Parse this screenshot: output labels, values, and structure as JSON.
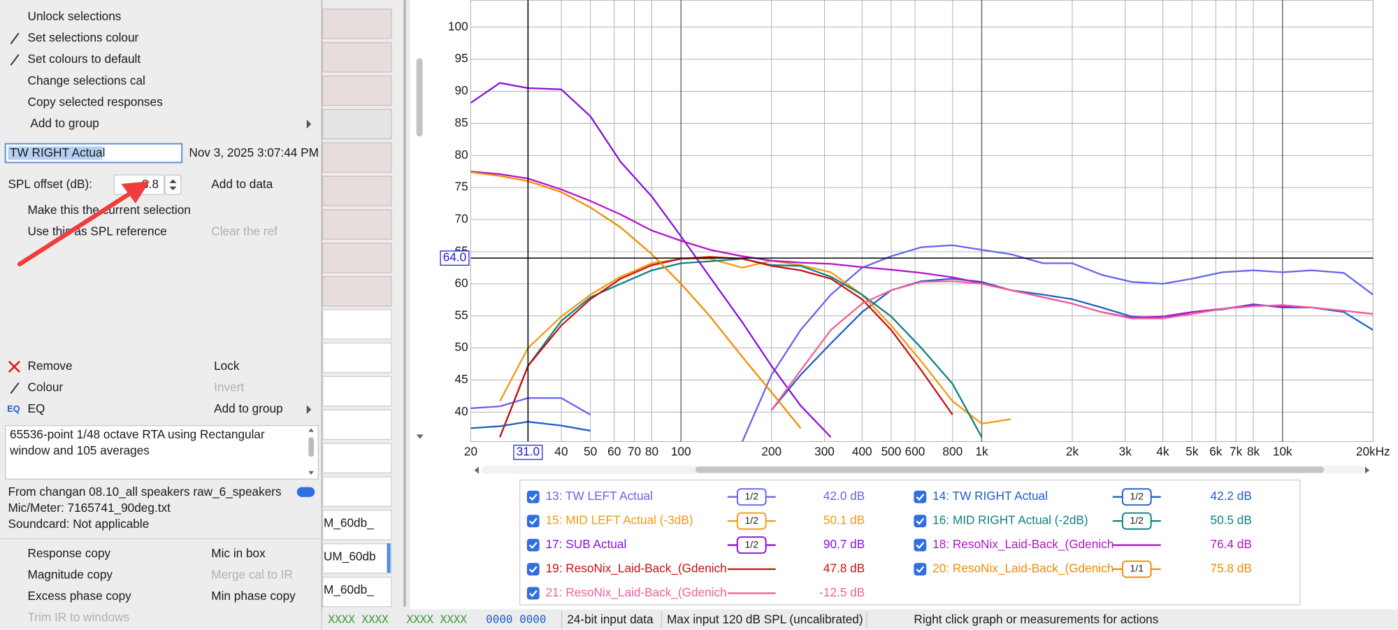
{
  "menu_top": [
    "Unlock selections",
    "Set selections colour",
    "Set colours to default",
    "Change selections cal",
    "Copy selected responses",
    "Add to group"
  ],
  "name_field": "TW RIGHT Actual",
  "timestamp": "Nov 3, 2025 3:07:44 PM",
  "spl_offset": {
    "label": "SPL offset (dB):",
    "value": -3.8,
    "button": "Add to data"
  },
  "actions": [
    "Make this the current selection",
    "Use this as SPL reference",
    "Clear the ref"
  ],
  "item_menu": [
    [
      "Remove",
      "Lock"
    ],
    [
      "Colour",
      "Invert"
    ],
    [
      "EQ",
      "Add to group"
    ]
  ],
  "notes": [
    "65536-point 1/48 octave RTA using Rectangular",
    "window and 105 averages"
  ],
  "info": [
    "From changan 08.10_all speakers raw_6_speakers",
    "Mic/Meter: 7165741_90deg.txt",
    "Soundcard: Not applicable"
  ],
  "bottom_menu": [
    [
      "Response copy",
      "Mic in box"
    ],
    [
      "Magnitude copy",
      "Merge cal to IR"
    ],
    [
      "Excess phase copy",
      "Min phase copy"
    ],
    [
      "Trim IR to windows"
    ]
  ],
  "list_fragments": [
    "M_60db_",
    "UM_60db",
    "M_60db_"
  ],
  "status": [
    "XXXX XXXX",
    "XXXX XXXX",
    "0000 0000",
    "24-bit input data",
    "Max input 120 dB SPL (uncalibrated)",
    "Right click graph or measurements for actions"
  ],
  "graph": {
    "type": "line",
    "log_x": true,
    "xlim": [
      20,
      20000
    ],
    "ylim": [
      35.4,
      104.2
    ],
    "yticks": [
      40,
      45,
      50,
      55,
      60,
      65,
      70,
      75,
      80,
      85,
      90,
      95,
      100
    ],
    "xticks": [
      20,
      40,
      50,
      60,
      70,
      80,
      100,
      200,
      300,
      400,
      500,
      600,
      800,
      {
        "value": 1000,
        "label": "1k"
      },
      {
        "value": 2000,
        "label": "2k"
      },
      {
        "value": 3000,
        "label": "3k"
      },
      {
        "value": 4000,
        "label": "4k"
      },
      {
        "value": 5000,
        "label": "5k"
      },
      {
        "value": 6000,
        "label": "6k"
      },
      {
        "value": 7000,
        "label": "7k"
      },
      {
        "value": 8000,
        "label": "8k"
      },
      {
        "value": 10000,
        "label": "10k"
      },
      {
        "value": 20000,
        "label": "20kHz"
      }
    ],
    "cursor": {
      "x": {
        "value": 31,
        "label": "31.0"
      },
      "y": {
        "value": 64,
        "label": "64.0"
      }
    },
    "x": [
      20,
      25,
      31,
      40,
      50,
      63,
      80,
      100,
      125,
      160,
      200,
      250,
      315,
      400,
      500,
      630,
      800,
      1000,
      1250,
      1600,
      2000,
      2500,
      3150,
      4000,
      5000,
      6300,
      8000,
      10000,
      12500,
      16000,
      20000
    ],
    "series": [
      {
        "name": "13: TW LEFT Actual",
        "color": "#6464f0",
        "smoothing": "1/2",
        "level": "42.0 dB",
        "values": [
          40.6,
          40.9,
          42.2,
          42.2,
          39.6,
          null,
          null,
          null,
          null,
          35.4,
          45.8,
          52.8,
          58.3,
          62.5,
          64.3,
          65.7,
          66,
          65.3,
          64.6,
          63.2,
          63.2,
          61.4,
          60.3,
          60,
          60.8,
          61.8,
          62.1,
          61.8,
          62.1,
          61.7,
          58.3
        ]
      },
      {
        "name": "14: TW RIGHT Actual",
        "color": "#1f5fc8",
        "smoothing": "1/2",
        "level": "42.2 dB",
        "values": [
          37.5,
          37.8,
          38.5,
          37.9,
          37.1,
          null,
          null,
          null,
          null,
          null,
          40.3,
          45.8,
          50.7,
          55.6,
          59,
          60.4,
          60.8,
          60.3,
          59,
          58.3,
          57.6,
          56.3,
          54.9,
          54.6,
          55.6,
          56,
          56.8,
          56.3,
          56.3,
          55.6,
          52.8
        ]
      },
      {
        "name": "15: MID LEFT Actual (-3dB)",
        "color": "#f59a0c",
        "smoothing": "1/2",
        "level": "50.1 dB",
        "values": [
          null,
          41.7,
          50,
          54.9,
          58.3,
          61.1,
          63.2,
          63.9,
          63.9,
          62.5,
          63.6,
          62.9,
          61.8,
          58.3,
          53.5,
          47.9,
          41.7,
          38.2,
          38.9,
          null,
          null,
          null,
          null,
          null,
          null,
          null,
          null,
          null,
          null,
          null,
          null
        ]
      },
      {
        "name": "16: MID RIGHT Actual (-2dB)",
        "color": "#0e8080",
        "smoothing": "1/2",
        "level": "50.5 dB",
        "values": [
          null,
          36.1,
          47.2,
          54.2,
          57.9,
          60,
          62.1,
          63.2,
          63.5,
          63.9,
          62.9,
          62.8,
          61.1,
          58.3,
          54.9,
          50,
          44.4,
          36.1,
          null,
          null,
          null,
          null,
          null,
          null,
          null,
          null,
          null,
          null,
          null,
          null,
          null
        ]
      },
      {
        "name": "17: SUB Actual",
        "color": "#8a10e0",
        "smoothing": "1/2",
        "level": "90.7 dB",
        "values": [
          88.2,
          91.3,
          90.5,
          90.3,
          86.1,
          79,
          73.6,
          67.4,
          61,
          54,
          47.2,
          41,
          36.1,
          null,
          null,
          null,
          null,
          null,
          null,
          null,
          null,
          null,
          null,
          null,
          null,
          null,
          null,
          null,
          null,
          null,
          null
        ]
      },
      {
        "name": "18: ResoNix_Laid-Back_(Gdenich",
        "color": "#b414c8",
        "smoothing": null,
        "level": "76.4 dB",
        "values": [
          77.5,
          77.1,
          76.4,
          74.7,
          72.9,
          70.8,
          68.3,
          66.7,
          65.3,
          64.3,
          63.6,
          63.3,
          63.1,
          62.6,
          62.2,
          61.7,
          61,
          60.1,
          59,
          57.9,
          56.9,
          55.6,
          54.7,
          54.9,
          55.6,
          56.1,
          56.7,
          56.5,
          56.3,
          55.8,
          55.3
        ]
      },
      {
        "name": "19: ResoNix_Laid-Back_(Gdenich",
        "color": "#c81010",
        "smoothing": null,
        "level": "47.8 dB",
        "values": [
          null,
          36.1,
          47.2,
          53.5,
          57.6,
          60.8,
          62.9,
          63.9,
          64.2,
          63.9,
          62.8,
          62.1,
          60.8,
          57.6,
          52.8,
          46.5,
          39.6,
          null,
          null,
          null,
          null,
          null,
          null,
          null,
          null,
          null,
          null,
          null,
          null,
          null,
          null
        ]
      },
      {
        "name": "20: ResoNix_Laid-Back_(Gdenich",
        "color": "#f08c00",
        "smoothing": "1/1",
        "level": "75.8 dB",
        "values": [
          77.4,
          76.8,
          76,
          74.3,
          71.9,
          68.8,
          64.6,
          60,
          54.9,
          48.6,
          43.1,
          37.5,
          null,
          null,
          null,
          null,
          null,
          null,
          null,
          null,
          null,
          null,
          null,
          null,
          null,
          null,
          null,
          null,
          null,
          null,
          null
        ]
      },
      {
        "name": "21: ResoNix_Laid-Back_(Gdenich",
        "color": "#f0609a",
        "smoothing": null,
        "level": "-12.5 dB",
        "values": [
          null,
          null,
          null,
          null,
          null,
          null,
          null,
          null,
          null,
          null,
          40.3,
          46.5,
          52.8,
          56.9,
          59,
          60.3,
          60.4,
          60,
          59,
          57.9,
          56.9,
          55.6,
          54.6,
          54.6,
          55.3,
          56.1,
          56.5,
          56.7,
          56.3,
          55.8,
          55.3
        ]
      }
    ]
  }
}
